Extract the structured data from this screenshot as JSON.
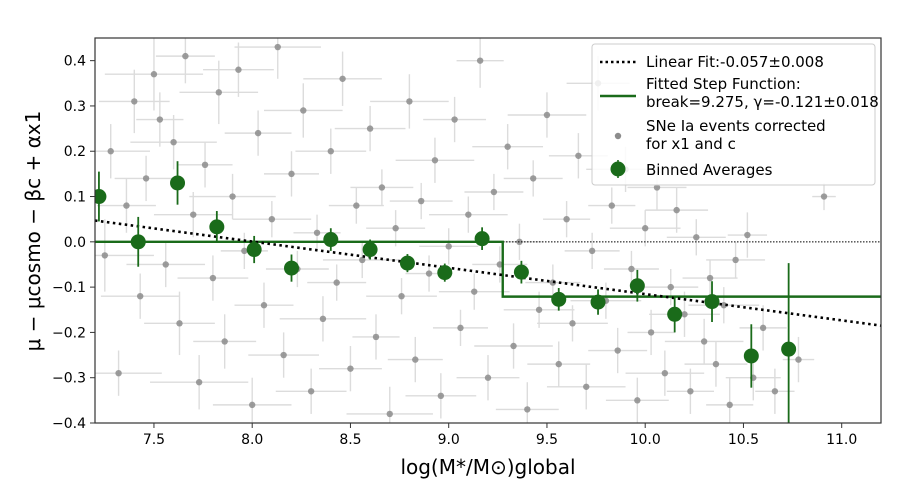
{
  "chart_data": {
    "type": "scatter",
    "xlim": [
      7.2,
      11.2
    ],
    "ylim": [
      -0.4,
      0.45
    ],
    "xticks": [
      7.5,
      8.0,
      8.5,
      9.0,
      9.5,
      10.0,
      10.5,
      11.0
    ],
    "xtick_labels": [
      "7.5",
      "8.0",
      "8.5",
      "9.0",
      "9.5",
      "10.0",
      "10.5",
      "11.0"
    ],
    "yticks": [
      -0.4,
      -0.3,
      -0.2,
      -0.1,
      0.0,
      0.1,
      0.2,
      0.3,
      0.4
    ],
    "ytick_labels": [
      "−0.4",
      "−0.3",
      "−0.2",
      "−0.1",
      "0.0",
      "0.1",
      "0.2",
      "0.3",
      "0.4"
    ],
    "xlabel": "log(M*/M⊙)global",
    "ylabel": "μ − μcosmo − βc + αx1",
    "grid": false,
    "legend_position": "top-right",
    "colors": {
      "linear_fit": "#000000",
      "step": "#1a6b1a",
      "scatter": "#8c8c8c",
      "scatter_err": "#dcdcdc",
      "binned": "#1a6b1a"
    },
    "legend": [
      {
        "key": "linear",
        "lines": [
          "Linear Fit:-0.057±0.008"
        ]
      },
      {
        "key": "step",
        "lines": [
          "Fitted Step Function:",
          "break=9.275, γ=-0.121±0.018"
        ]
      },
      {
        "key": "scatter",
        "lines": [
          "SNe Ia events corrected",
          " for x1 and c"
        ]
      },
      {
        "key": "binned",
        "lines": [
          "Binned Averages"
        ]
      }
    ],
    "linear_fit": {
      "x": [
        7.2,
        11.2
      ],
      "y": [
        0.047,
        -0.185
      ]
    },
    "step_function": {
      "break": 9.275,
      "low_level": 0.0,
      "high_level": -0.121
    },
    "zero_line": 0.0,
    "binned_averages": [
      {
        "x": 7.22,
        "y": 0.1,
        "err": 0.055
      },
      {
        "x": 7.42,
        "y": 0.0,
        "err": 0.055
      },
      {
        "x": 7.62,
        "y": 0.13,
        "err": 0.048
      },
      {
        "x": 7.82,
        "y": 0.033,
        "err": 0.035
      },
      {
        "x": 8.01,
        "y": -0.017,
        "err": 0.03
      },
      {
        "x": 8.2,
        "y": -0.058,
        "err": 0.03
      },
      {
        "x": 8.4,
        "y": 0.005,
        "err": 0.025
      },
      {
        "x": 8.6,
        "y": -0.017,
        "err": 0.022
      },
      {
        "x": 8.79,
        "y": -0.047,
        "err": 0.02
      },
      {
        "x": 8.98,
        "y": -0.068,
        "err": 0.02
      },
      {
        "x": 9.17,
        "y": 0.007,
        "err": 0.025
      },
      {
        "x": 9.37,
        "y": -0.067,
        "err": 0.025
      },
      {
        "x": 9.56,
        "y": -0.127,
        "err": 0.025
      },
      {
        "x": 9.76,
        "y": -0.133,
        "err": 0.028
      },
      {
        "x": 9.96,
        "y": -0.097,
        "err": 0.035
      },
      {
        "x": 10.15,
        "y": -0.16,
        "err": 0.04
      },
      {
        "x": 10.34,
        "y": -0.132,
        "err": 0.045
      },
      {
        "x": 10.54,
        "y": -0.252,
        "err": 0.07
      },
      {
        "x": 10.73,
        "y": -0.237,
        "err": 0.19
      }
    ],
    "sne_ia_events": [
      {
        "x": 7.25,
        "y": -0.03,
        "xe": 0.25,
        "ye": 0.08
      },
      {
        "x": 7.28,
        "y": 0.2,
        "xe": 0.2,
        "ye": 0.06
      },
      {
        "x": 7.32,
        "y": -0.29,
        "xe": 0.22,
        "ye": 0.05
      },
      {
        "x": 7.36,
        "y": 0.08,
        "xe": 0.15,
        "ye": 0.06
      },
      {
        "x": 7.4,
        "y": 0.31,
        "xe": 0.18,
        "ye": 0.07
      },
      {
        "x": 7.43,
        "y": -0.12,
        "xe": 0.2,
        "ye": 0.05
      },
      {
        "x": 7.46,
        "y": 0.14,
        "xe": 0.16,
        "ye": 0.05
      },
      {
        "x": 7.5,
        "y": 0.37,
        "xe": 0.25,
        "ye": 0.08
      },
      {
        "x": 7.53,
        "y": 0.27,
        "xe": 0.12,
        "ye": 0.06
      },
      {
        "x": 7.56,
        "y": -0.05,
        "xe": 0.2,
        "ye": 0.05
      },
      {
        "x": 7.6,
        "y": 0.22,
        "xe": 0.22,
        "ye": 0.06
      },
      {
        "x": 7.63,
        "y": -0.18,
        "xe": 0.18,
        "ye": 0.07
      },
      {
        "x": 7.66,
        "y": 0.41,
        "xe": 0.15,
        "ye": 0.06
      },
      {
        "x": 7.7,
        "y": 0.06,
        "xe": 0.2,
        "ye": 0.05
      },
      {
        "x": 7.73,
        "y": -0.31,
        "xe": 0.25,
        "ye": 0.06
      },
      {
        "x": 7.76,
        "y": 0.17,
        "xe": 0.14,
        "ye": 0.05
      },
      {
        "x": 7.8,
        "y": -0.08,
        "xe": 0.18,
        "ye": 0.05
      },
      {
        "x": 7.83,
        "y": 0.33,
        "xe": 0.2,
        "ye": 0.07
      },
      {
        "x": 7.86,
        "y": -0.22,
        "xe": 0.16,
        "ye": 0.06
      },
      {
        "x": 7.9,
        "y": 0.1,
        "xe": 0.22,
        "ye": 0.05
      },
      {
        "x": 7.93,
        "y": 0.38,
        "xe": 0.18,
        "ye": 0.06
      },
      {
        "x": 7.96,
        "y": -0.02,
        "xe": 0.12,
        "ye": 0.04
      },
      {
        "x": 8.0,
        "y": -0.36,
        "xe": 0.2,
        "ye": 0.06
      },
      {
        "x": 8.03,
        "y": 0.24,
        "xe": 0.17,
        "ye": 0.05
      },
      {
        "x": 8.06,
        "y": -0.14,
        "xe": 0.15,
        "ye": 0.05
      },
      {
        "x": 8.1,
        "y": 0.05,
        "xe": 0.2,
        "ye": 0.04
      },
      {
        "x": 8.13,
        "y": 0.43,
        "xe": 0.22,
        "ye": 0.07
      },
      {
        "x": 8.16,
        "y": -0.25,
        "xe": 0.18,
        "ye": 0.05
      },
      {
        "x": 8.2,
        "y": 0.15,
        "xe": 0.14,
        "ye": 0.05
      },
      {
        "x": 8.23,
        "y": -0.06,
        "xe": 0.16,
        "ye": 0.04
      },
      {
        "x": 8.26,
        "y": 0.29,
        "xe": 0.2,
        "ye": 0.06
      },
      {
        "x": 8.3,
        "y": -0.33,
        "xe": 0.18,
        "ye": 0.05
      },
      {
        "x": 8.33,
        "y": 0.02,
        "xe": 0.12,
        "ye": 0.04
      },
      {
        "x": 8.36,
        "y": -0.17,
        "xe": 0.22,
        "ye": 0.05
      },
      {
        "x": 8.4,
        "y": 0.2,
        "xe": 0.18,
        "ye": 0.05
      },
      {
        "x": 8.43,
        "y": -0.09,
        "xe": 0.15,
        "ye": 0.04
      },
      {
        "x": 8.46,
        "y": 0.36,
        "xe": 0.2,
        "ye": 0.06
      },
      {
        "x": 8.5,
        "y": -0.28,
        "xe": 0.16,
        "ye": 0.05
      },
      {
        "x": 8.53,
        "y": 0.08,
        "xe": 0.14,
        "ye": 0.04
      },
      {
        "x": 8.56,
        "y": -0.04,
        "xe": 0.2,
        "ye": 0.04
      },
      {
        "x": 8.6,
        "y": 0.25,
        "xe": 0.18,
        "ye": 0.05
      },
      {
        "x": 8.63,
        "y": -0.21,
        "xe": 0.12,
        "ye": 0.05
      },
      {
        "x": 8.66,
        "y": 0.12,
        "xe": 0.16,
        "ye": 0.04
      },
      {
        "x": 8.7,
        "y": -0.38,
        "xe": 0.22,
        "ye": 0.06
      },
      {
        "x": 8.73,
        "y": 0.03,
        "xe": 0.15,
        "ye": 0.04
      },
      {
        "x": 8.76,
        "y": -0.12,
        "xe": 0.18,
        "ye": 0.04
      },
      {
        "x": 8.8,
        "y": 0.31,
        "xe": 0.2,
        "ye": 0.06
      },
      {
        "x": 8.83,
        "y": -0.26,
        "xe": 0.14,
        "ye": 0.05
      },
      {
        "x": 8.86,
        "y": 0.09,
        "xe": 0.16,
        "ye": 0.04
      },
      {
        "x": 8.9,
        "y": -0.07,
        "xe": 0.12,
        "ye": 0.04
      },
      {
        "x": 8.93,
        "y": 0.18,
        "xe": 0.2,
        "ye": 0.05
      },
      {
        "x": 8.96,
        "y": -0.34,
        "xe": 0.18,
        "ye": 0.05
      },
      {
        "x": 9.0,
        "y": -0.01,
        "xe": 0.15,
        "ye": 0.04
      },
      {
        "x": 9.03,
        "y": 0.27,
        "xe": 0.16,
        "ye": 0.05
      },
      {
        "x": 9.06,
        "y": -0.19,
        "xe": 0.14,
        "ye": 0.04
      },
      {
        "x": 9.1,
        "y": 0.06,
        "xe": 0.2,
        "ye": 0.04
      },
      {
        "x": 9.13,
        "y": -0.11,
        "xe": 0.18,
        "ye": 0.04
      },
      {
        "x": 9.16,
        "y": 0.4,
        "xe": 0.12,
        "ye": 0.06
      },
      {
        "x": 9.2,
        "y": -0.3,
        "xe": 0.16,
        "ye": 0.05
      },
      {
        "x": 9.23,
        "y": 0.11,
        "xe": 0.15,
        "ye": 0.04
      },
      {
        "x": 9.26,
        "y": -0.05,
        "xe": 0.14,
        "ye": 0.04
      },
      {
        "x": 9.3,
        "y": 0.21,
        "xe": 0.18,
        "ye": 0.05
      },
      {
        "x": 9.33,
        "y": -0.23,
        "xe": 0.2,
        "ye": 0.05
      },
      {
        "x": 9.36,
        "y": 0.0,
        "xe": 0.12,
        "ye": 0.04
      },
      {
        "x": 9.4,
        "y": -0.37,
        "xe": 0.16,
        "ye": 0.06
      },
      {
        "x": 9.43,
        "y": 0.14,
        "xe": 0.15,
        "ye": 0.04
      },
      {
        "x": 9.46,
        "y": -0.15,
        "xe": 0.18,
        "ye": 0.04
      },
      {
        "x": 9.5,
        "y": 0.28,
        "xe": 0.2,
        "ye": 0.05
      },
      {
        "x": 9.53,
        "y": -0.09,
        "xe": 0.14,
        "ye": 0.04
      },
      {
        "x": 9.56,
        "y": -0.27,
        "xe": 0.16,
        "ye": 0.05
      },
      {
        "x": 9.6,
        "y": 0.05,
        "xe": 0.12,
        "ye": 0.04
      },
      {
        "x": 9.63,
        "y": -0.18,
        "xe": 0.18,
        "ye": 0.04
      },
      {
        "x": 9.66,
        "y": 0.19,
        "xe": 0.15,
        "ye": 0.05
      },
      {
        "x": 9.7,
        "y": -0.32,
        "xe": 0.2,
        "ye": 0.05
      },
      {
        "x": 9.73,
        "y": -0.02,
        "xe": 0.14,
        "ye": 0.04
      },
      {
        "x": 9.76,
        "y": 0.35,
        "xe": 0.16,
        "ye": 0.06
      },
      {
        "x": 9.8,
        "y": -0.13,
        "xe": 0.18,
        "ye": 0.04
      },
      {
        "x": 9.83,
        "y": 0.08,
        "xe": 0.12,
        "ye": 0.04
      },
      {
        "x": 9.86,
        "y": -0.24,
        "xe": 0.15,
        "ye": 0.05
      },
      {
        "x": 9.9,
        "y": 0.16,
        "xe": 0.2,
        "ye": 0.05
      },
      {
        "x": 9.93,
        "y": -0.06,
        "xe": 0.14,
        "ye": 0.04
      },
      {
        "x": 9.96,
        "y": -0.35,
        "xe": 0.16,
        "ye": 0.05
      },
      {
        "x": 10.0,
        "y": 0.03,
        "xe": 0.18,
        "ye": 0.04
      },
      {
        "x": 10.03,
        "y": -0.2,
        "xe": 0.12,
        "ye": 0.05
      },
      {
        "x": 10.06,
        "y": 0.12,
        "xe": 0.15,
        "ye": 0.05
      },
      {
        "x": 10.1,
        "y": -0.29,
        "xe": 0.2,
        "ye": 0.05
      },
      {
        "x": 10.13,
        "y": -0.1,
        "xe": 0.14,
        "ye": 0.04
      },
      {
        "x": 10.16,
        "y": 0.07,
        "xe": 0.16,
        "ye": 0.05
      },
      {
        "x": 10.2,
        "y": -0.16,
        "xe": 0.18,
        "ye": 0.05
      },
      {
        "x": 10.23,
        "y": -0.33,
        "xe": 0.12,
        "ye": 0.05
      },
      {
        "x": 10.26,
        "y": 0.01,
        "xe": 0.15,
        "ye": 0.04
      },
      {
        "x": 10.3,
        "y": -0.22,
        "xe": 0.2,
        "ye": 0.05
      },
      {
        "x": 10.33,
        "y": -0.08,
        "xe": 0.14,
        "ye": 0.04
      },
      {
        "x": 10.36,
        "y": -0.27,
        "xe": 0.16,
        "ye": 0.05
      },
      {
        "x": 10.4,
        "y": -0.14,
        "xe": 0.18,
        "ye": 0.04
      },
      {
        "x": 10.43,
        "y": -0.36,
        "xe": 0.12,
        "ye": 0.06
      },
      {
        "x": 10.46,
        "y": -0.04,
        "xe": 0.15,
        "ye": 0.04
      },
      {
        "x": 10.52,
        "y": 0.015,
        "xe": 0.1,
        "ye": 0.05
      },
      {
        "x": 10.55,
        "y": -0.3,
        "xe": 0.14,
        "ye": 0.05
      },
      {
        "x": 10.6,
        "y": -0.19,
        "xe": 0.12,
        "ye": 0.05
      },
      {
        "x": 10.66,
        "y": -0.33,
        "xe": 0.1,
        "ye": 0.05
      },
      {
        "x": 10.78,
        "y": -0.26,
        "xe": 0.08,
        "ye": 0.05
      },
      {
        "x": 10.91,
        "y": 0.1,
        "xe": 0.06,
        "ye": 0.03
      }
    ]
  }
}
